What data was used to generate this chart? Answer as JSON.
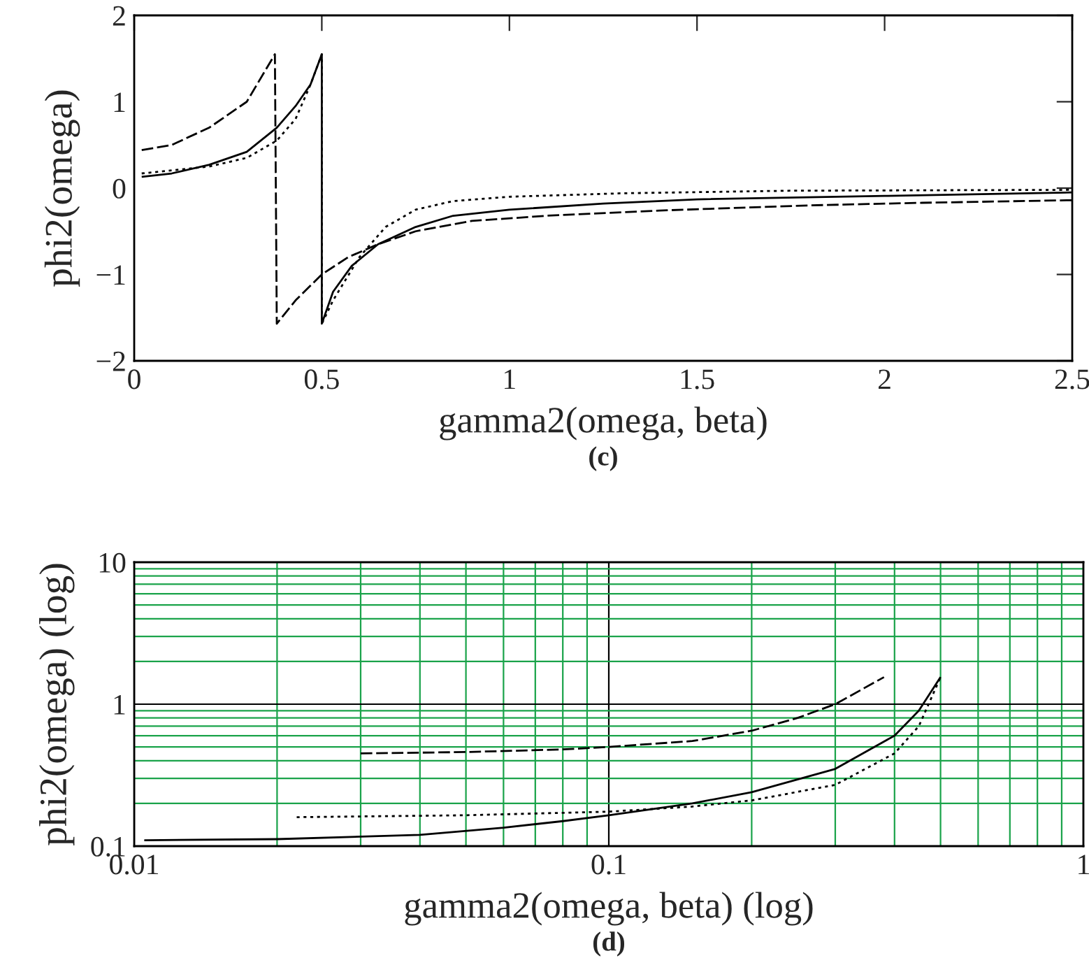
{
  "chart_data": [
    {
      "type": "line",
      "xlabel": "gamma2(omega, beta)",
      "ylabel": "phi2(omega)",
      "annotations": [
        "(c)"
      ],
      "xlim": [
        0,
        2.5
      ],
      "ylim": [
        -2,
        2
      ],
      "xticks": [
        0,
        0.5,
        1,
        1.5,
        2,
        2.5
      ],
      "yticks": [
        {
          "value": -2,
          "label": "−2"
        },
        {
          "value": -1,
          "label": "−1"
        },
        0,
        1,
        2
      ],
      "grid": false,
      "legend": false,
      "series": [
        {
          "color": "#000000",
          "line_style": "solid",
          "x": [
            0.02,
            0.1,
            0.2,
            0.3,
            0.38,
            0.43,
            0.47,
            0.5,
            0.5,
            0.53,
            0.58,
            0.65,
            0.75,
            0.85,
            1.0,
            1.25,
            1.5,
            2.0,
            2.5
          ],
          "values": [
            0.13,
            0.17,
            0.27,
            0.42,
            0.7,
            0.95,
            1.2,
            1.55,
            -1.57,
            -1.2,
            -0.9,
            -0.65,
            -0.45,
            -0.32,
            -0.25,
            -0.18,
            -0.13,
            -0.09,
            -0.05
          ]
        },
        {
          "color": "#000000",
          "line_style": "dashed",
          "x": [
            0.02,
            0.1,
            0.2,
            0.3,
            0.375,
            0.38,
            0.43,
            0.5,
            0.57,
            0.65,
            0.75,
            0.9,
            1.1,
            1.4,
            1.8,
            2.1,
            2.5
          ],
          "values": [
            0.44,
            0.5,
            0.7,
            1.0,
            1.55,
            -1.57,
            -1.3,
            -1.0,
            -0.8,
            -0.65,
            -0.5,
            -0.38,
            -0.32,
            -0.26,
            -0.2,
            -0.17,
            -0.14
          ]
        },
        {
          "color": "#000000",
          "line_style": "dotted",
          "x": [
            0.02,
            0.2,
            0.3,
            0.38,
            0.43,
            0.47,
            0.5,
            0.5,
            0.53,
            0.6,
            0.67,
            0.75,
            0.85,
            1.0,
            1.3,
            1.75,
            2.5
          ],
          "values": [
            0.17,
            0.25,
            0.35,
            0.55,
            0.8,
            1.2,
            1.55,
            -1.57,
            -1.3,
            -0.8,
            -0.45,
            -0.25,
            -0.15,
            -0.1,
            -0.06,
            -0.03,
            -0.02
          ]
        }
      ]
    },
    {
      "type": "line",
      "xlabel": "gamma2(omega, beta) (log)",
      "ylabel": "phi2(omega) (log)",
      "annotations": [
        "(d)"
      ],
      "log": "xy",
      "xlim": [
        0.01,
        1
      ],
      "ylim": [
        0.1,
        10
      ],
      "xticks": [
        0.01,
        {
          "value": 0.02,
          "label": null
        },
        {
          "value": 0.03,
          "label": null
        },
        {
          "value": 0.04,
          "label": null
        },
        {
          "value": 0.05,
          "label": null
        },
        {
          "value": 0.06,
          "label": null
        },
        {
          "value": 0.07,
          "label": null
        },
        {
          "value": 0.08,
          "label": null
        },
        {
          "value": 0.09,
          "label": null
        },
        0.1,
        {
          "value": 0.2,
          "label": null
        },
        {
          "value": 0.3,
          "label": null
        },
        {
          "value": 0.4,
          "label": null
        },
        {
          "value": 0.5,
          "label": null
        },
        {
          "value": 0.6,
          "label": null
        },
        {
          "value": 0.7,
          "label": null
        },
        {
          "value": 0.8,
          "label": null
        },
        {
          "value": 0.9,
          "label": null
        },
        1
      ],
      "yticks": [
        0.1,
        {
          "value": 0.2,
          "label": null
        },
        {
          "value": 0.3,
          "label": null
        },
        {
          "value": 0.4,
          "label": null
        },
        {
          "value": 0.5,
          "label": null
        },
        {
          "value": 0.6,
          "label": null
        },
        {
          "value": 0.7,
          "label": null
        },
        {
          "value": 0.8,
          "label": null
        },
        {
          "value": 0.9,
          "label": null
        },
        1,
        {
          "value": 2,
          "label": null
        },
        {
          "value": 3,
          "label": null
        },
        {
          "value": 4,
          "label": null
        },
        {
          "value": 5,
          "label": null
        },
        {
          "value": 6,
          "label": null
        },
        {
          "value": 7,
          "label": null
        },
        {
          "value": 8,
          "label": null
        },
        {
          "value": 9,
          "label": null
        },
        10
      ],
      "grid": true,
      "legend": false,
      "series": [
        {
          "color": "#000000",
          "line_style": "solid",
          "x": [
            0.0105,
            0.02,
            0.04,
            0.06,
            0.08,
            0.1,
            0.15,
            0.2,
            0.3,
            0.4,
            0.45,
            0.5
          ],
          "values": [
            0.11,
            0.112,
            0.12,
            0.135,
            0.15,
            0.165,
            0.2,
            0.24,
            0.35,
            0.6,
            0.9,
            1.55
          ]
        },
        {
          "color": "#000000",
          "line_style": "dashed",
          "x": [
            0.03,
            0.05,
            0.08,
            0.1,
            0.15,
            0.2,
            0.25,
            0.3,
            0.38
          ],
          "values": [
            0.45,
            0.46,
            0.48,
            0.5,
            0.55,
            0.65,
            0.8,
            1.0,
            1.55
          ]
        },
        {
          "color": "#000000",
          "line_style": "dotted",
          "x": [
            0.022,
            0.05,
            0.1,
            0.15,
            0.2,
            0.3,
            0.4,
            0.45,
            0.5
          ],
          "values": [
            0.16,
            0.165,
            0.175,
            0.19,
            0.21,
            0.27,
            0.45,
            0.7,
            1.55
          ]
        }
      ]
    }
  ]
}
